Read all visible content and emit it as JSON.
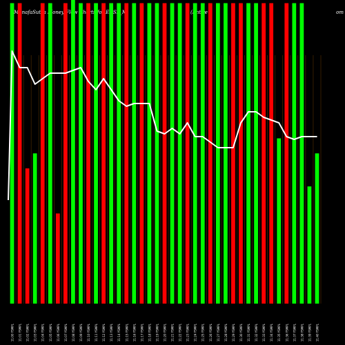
{
  "chart_data": {
    "type": "bar",
    "title": "MunafaSutra Money Flow Charts for EDSL_M",
    "subtitle": "(Entire",
    "site": "om",
    "ylim": [
      0,
      100
    ],
    "ylabel": "",
    "xlabel": "",
    "colors": {
      "up": "#00ff00",
      "down": "#ff0000",
      "line": "#ffffff",
      "bg": "#000000"
    },
    "categories": [
      "11:00 YSMPL",
      "11:01 YSMPL",
      "11:02 YSMPL",
      "11:03 YSMPL",
      "11:04 YSMPL",
      "11:05 YSMPL",
      "11:06 YSMPL",
      "11:07 YSMPL",
      "11:08 YSMPL",
      "11:09 YSMPL",
      "11:10 YSMPL",
      "11:11 YSMPL",
      "11:12 YSMPL",
      "11:13 YSMPL",
      "11:14 YSMPL",
      "11:15 YSMPL",
      "11:16 YSMPL",
      "11:17 YSMPL",
      "11:18 YSMPL",
      "11:19 YSMPL",
      "11:20 YSMPL",
      "11:21 YSMPL",
      "11:22 YSMPL",
      "11:23 YSMPL",
      "11:24 YSMPL",
      "11:25 YSMPL",
      "11:26 YSMPL",
      "11:27 YSMPL",
      "11:28 YSMPL",
      "11:29 YSMPL",
      "11:30 YSMPL",
      "11:31 YSMPL",
      "11:32 YSMPL",
      "11:33 YSMPL",
      "11:34 YSMPL",
      "11:35 YSMPL",
      "11:36 YSMPL",
      "11:37 YSMPL",
      "11:38 YSMPL",
      "11:39 YSMPL",
      "11:40 YSMPL"
    ],
    "bars": [
      {
        "v": 100,
        "c": "up"
      },
      {
        "v": 100,
        "c": "down"
      },
      {
        "v": 45,
        "c": "down"
      },
      {
        "v": 50,
        "c": "up"
      },
      {
        "v": 100,
        "c": "down"
      },
      {
        "v": 100,
        "c": "up"
      },
      {
        "v": 30,
        "c": "down"
      },
      {
        "v": 100,
        "c": "down"
      },
      {
        "v": 107,
        "c": "up"
      },
      {
        "v": 100,
        "c": "up"
      },
      {
        "v": 100,
        "c": "down"
      },
      {
        "v": 100,
        "c": "up"
      },
      {
        "v": 100,
        "c": "down"
      },
      {
        "v": 100,
        "c": "up"
      },
      {
        "v": 100,
        "c": "up"
      },
      {
        "v": 100,
        "c": "down"
      },
      {
        "v": 100,
        "c": "up"
      },
      {
        "v": 100,
        "c": "down"
      },
      {
        "v": 100,
        "c": "up"
      },
      {
        "v": 100,
        "c": "up"
      },
      {
        "v": 100,
        "c": "down"
      },
      {
        "v": 100,
        "c": "up"
      },
      {
        "v": 100,
        "c": "up"
      },
      {
        "v": 100,
        "c": "down"
      },
      {
        "v": 100,
        "c": "up"
      },
      {
        "v": 100,
        "c": "up"
      },
      {
        "v": 100,
        "c": "down"
      },
      {
        "v": 100,
        "c": "up"
      },
      {
        "v": 100,
        "c": "up"
      },
      {
        "v": 100,
        "c": "down"
      },
      {
        "v": 100,
        "c": "down"
      },
      {
        "v": 100,
        "c": "up"
      },
      {
        "v": 100,
        "c": "up"
      },
      {
        "v": 100,
        "c": "down"
      },
      {
        "v": 100,
        "c": "down"
      },
      {
        "v": 55,
        "c": "up"
      },
      {
        "v": 100,
        "c": "down"
      },
      {
        "v": 100,
        "c": "up"
      },
      {
        "v": 100,
        "c": "up"
      },
      {
        "v": 39,
        "c": "up"
      },
      {
        "v": 50,
        "c": "up"
      }
    ],
    "line": [
      94,
      88,
      88,
      82,
      84,
      86,
      86,
      86,
      87,
      88,
      83,
      80,
      84,
      80,
      76,
      74,
      75,
      75,
      75,
      65,
      64,
      66,
      64,
      68,
      63,
      63,
      61,
      59,
      59,
      59,
      68,
      72,
      72,
      70,
      69,
      68,
      63,
      62,
      63,
      63,
      63
    ]
  }
}
